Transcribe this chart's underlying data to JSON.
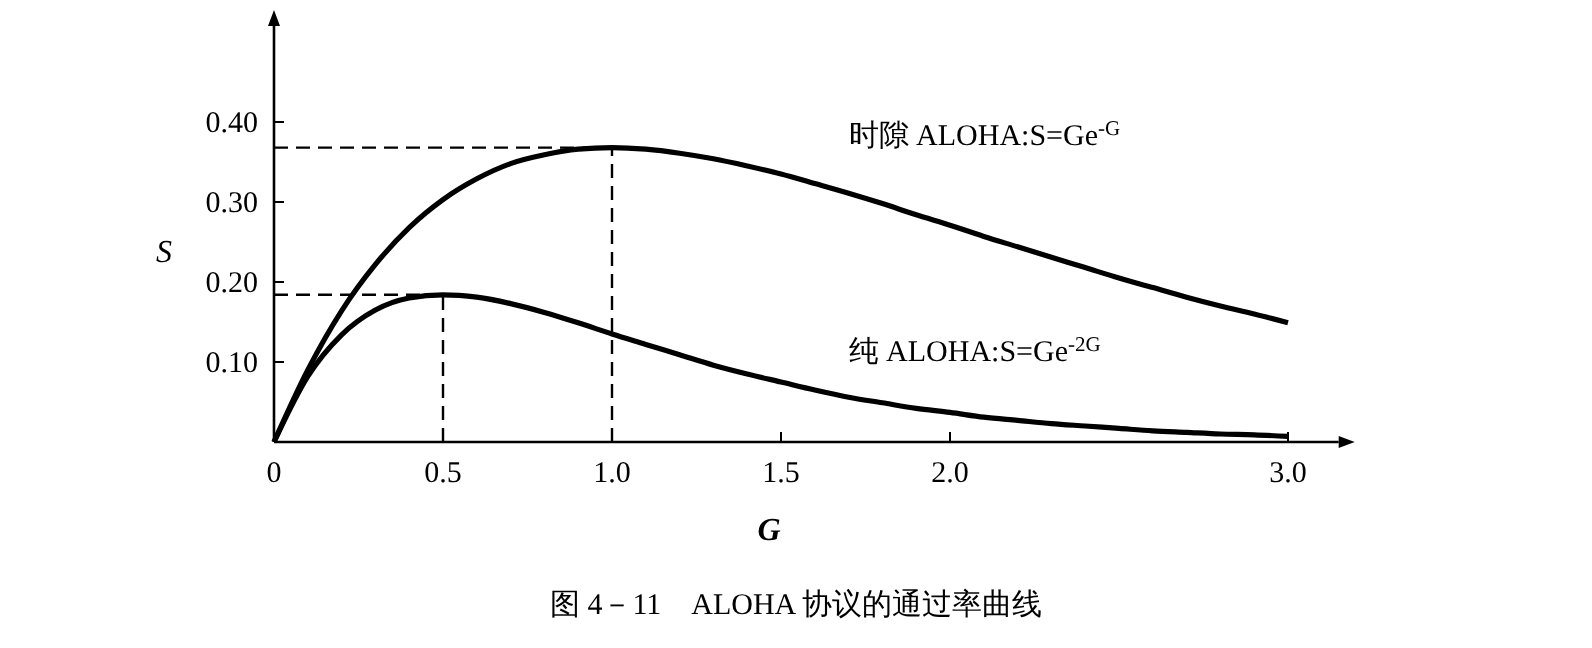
{
  "chart_data": {
    "type": "line",
    "title": "图 4－11　ALOHA 协议的通过率曲线",
    "xlabel": "G",
    "ylabel": "S",
    "x": [
      0,
      0.1,
      0.2,
      0.3,
      0.4,
      0.5,
      0.6,
      0.7,
      0.8,
      0.9,
      1.0,
      1.1,
      1.2,
      1.3,
      1.4,
      1.5,
      1.6,
      1.7,
      1.8,
      1.9,
      2.0,
      2.1,
      2.2,
      2.3,
      2.4,
      2.5,
      2.6,
      2.7,
      2.8,
      2.9,
      3.0
    ],
    "series": [
      {
        "name": "时隙 ALOHA:S=Ge$^{-G}$",
        "color": "#000000",
        "values": [
          0,
          0.09,
          0.164,
          0.222,
          0.268,
          0.303,
          0.329,
          0.348,
          0.359,
          0.366,
          0.368,
          0.366,
          0.361,
          0.354,
          0.345,
          0.335,
          0.323,
          0.311,
          0.298,
          0.284,
          0.271,
          0.257,
          0.244,
          0.231,
          0.218,
          0.205,
          0.193,
          0.181,
          0.17,
          0.16,
          0.149
        ]
      },
      {
        "name": "纯 ALOHA:S=Ge$^{-2G}$",
        "color": "#000000",
        "values": [
          0,
          0.082,
          0.134,
          0.165,
          0.18,
          0.184,
          0.181,
          0.173,
          0.162,
          0.149,
          0.135,
          0.122,
          0.109,
          0.096,
          0.085,
          0.075,
          0.065,
          0.056,
          0.049,
          0.042,
          0.037,
          0.031,
          0.027,
          0.023,
          0.02,
          0.017,
          0.014,
          0.012,
          0.01,
          0.009,
          0.007
        ]
      }
    ],
    "xlim": [
      0,
      3.15
    ],
    "ylim": [
      0,
      0.52
    ],
    "xticks": [
      0,
      {
        "value": 0.5,
        "label": "0.5"
      },
      {
        "value": 1,
        "label": "1.0"
      },
      {
        "value": 1.5,
        "label": "1.5"
      },
      {
        "value": 2,
        "label": "2.0"
      },
      {
        "value": 3,
        "label": "3.0"
      }
    ],
    "yticks": [
      {
        "value": 0.1,
        "label": "0.10"
      },
      {
        "value": 0.2,
        "label": "0.20"
      },
      {
        "value": 0.3,
        "label": "0.30"
      },
      {
        "value": 0.4,
        "label": "0.40"
      }
    ],
    "ref_lines": [
      {
        "axis": "y",
        "value": 0.368,
        "line_style": "dashed"
      },
      {
        "axis": "y",
        "value": 0.184,
        "line_style": "dashed"
      },
      {
        "axis": "x",
        "value": 1,
        "line_style": "dashed"
      },
      {
        "axis": "x",
        "value": 0.5,
        "line_style": "dashed"
      }
    ],
    "marker": "none",
    "line_style": "solid"
  }
}
